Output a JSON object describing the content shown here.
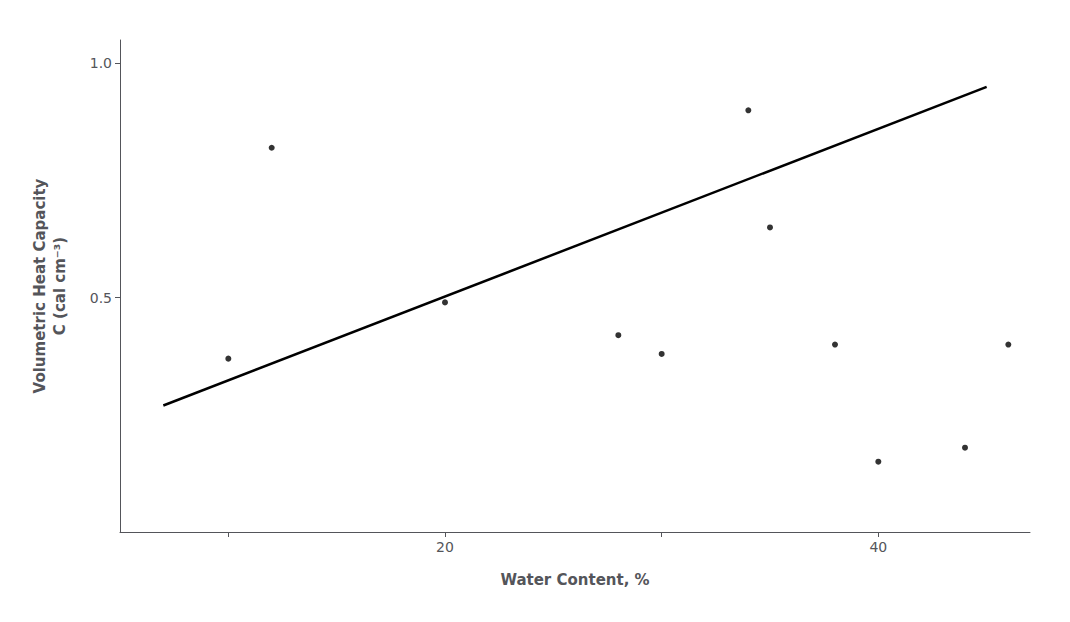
{
  "chart_data": {
    "type": "scatter",
    "title": "",
    "xlabel": "Water Content, %",
    "ylabel": "Volumetric Heat Capacity\nC (cal cm⁻³)",
    "xlim": [
      5,
      47
    ],
    "ylim": [
      0,
      1.05
    ],
    "xticks": [
      {
        "value": 10,
        "label": ""
      },
      20,
      {
        "value": 30,
        "label": ""
      },
      40
    ],
    "yticks": [
      0.5,
      {
        "value": 1.0,
        "label": "1.0"
      }
    ],
    "grid": false,
    "series": [
      {
        "type": "line",
        "color": "#000000",
        "x": [
          7,
          45
        ],
        "values": [
          0.27,
          0.95
        ]
      },
      {
        "type": "scatter",
        "color": "#000000",
        "x": [
          10,
          12,
          20,
          28,
          30,
          34,
          35,
          38,
          40,
          44,
          46
        ],
        "values": [
          0.37,
          0.82,
          0.49,
          0.42,
          0.38,
          0.9,
          0.65,
          0.4,
          0.15,
          0.18,
          0.4
        ]
      }
    ]
  }
}
